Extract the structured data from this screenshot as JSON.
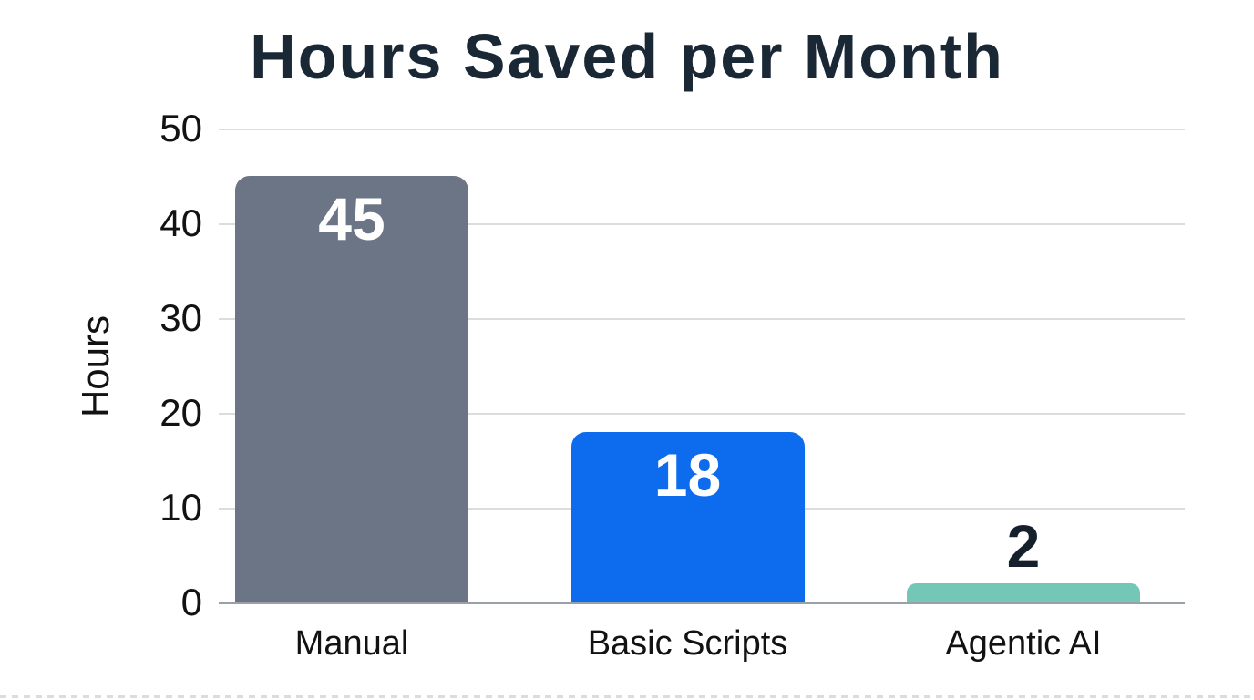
{
  "title": "Hours Saved per Month",
  "chart_data": {
    "type": "bar",
    "title": "Hours Saved per Month",
    "xlabel": "",
    "ylabel": "Hours",
    "categories": [
      "Manual",
      "Basic Scripts",
      "Agentic AI"
    ],
    "values": [
      45,
      18,
      2
    ],
    "ylim": [
      0,
      50
    ],
    "yticks": [
      0,
      10,
      20,
      30,
      40,
      50
    ],
    "grid": true,
    "legend": false,
    "bar_colors": [
      "#6c7586",
      "#0d6cee",
      "#74c7b6"
    ],
    "value_label_colors": [
      "#ffffff",
      "#ffffff",
      "#16202c"
    ],
    "value_label_placement": [
      "inside",
      "inside",
      "above"
    ]
  },
  "colors": {
    "title_text": "#1a2836",
    "axis_text": "#121212",
    "gridline": "#dcdcdc",
    "axis_line": "#9aa0a6",
    "background": "#ffffff"
  }
}
